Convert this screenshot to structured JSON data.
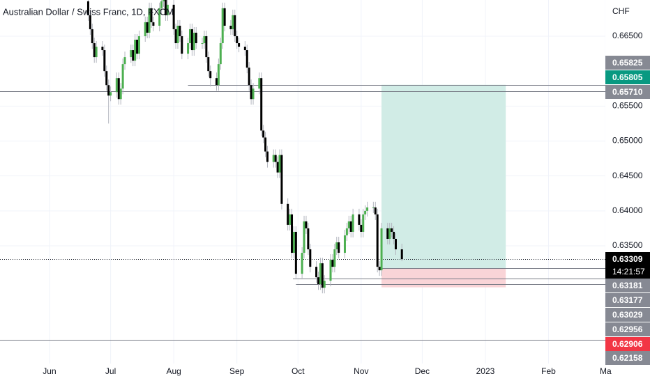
{
  "chart_data": {
    "type": "candlestick",
    "title": "Australian Dollar / Swiss Franc, 1D, FXCM",
    "y_unit_label": "CHF",
    "countdown": "14:21:57",
    "up_color": "#4caf50",
    "down_color": "#000000",
    "wick_color": "#b2b5be",
    "grid": true,
    "xlim": [
      -24.3,
      272.9
    ],
    "ylim": [
      0.61816,
      0.67018
    ],
    "xticks": [
      {
        "value": 0,
        "label": "Jun"
      },
      {
        "value": 30,
        "label": "Jul"
      },
      {
        "value": 61,
        "label": "Aug"
      },
      {
        "value": 92,
        "label": "Sep"
      },
      {
        "value": 122,
        "label": "Oct"
      },
      {
        "value": 153,
        "label": "Nov"
      },
      {
        "value": 183,
        "label": "Dec"
      },
      {
        "value": 214,
        "label": "2023"
      },
      {
        "value": 245,
        "label": "Feb"
      },
      {
        "value": 273,
        "label": "Ma"
      }
    ],
    "yticks": [
      {
        "value": 0.665,
        "label": "0.66500"
      },
      {
        "value": 0.655,
        "label": "0.65500"
      },
      {
        "value": 0.65,
        "label": "0.65000"
      },
      {
        "value": 0.645,
        "label": "0.64500"
      },
      {
        "value": 0.64,
        "label": "0.64000"
      },
      {
        "value": 0.635,
        "label": "0.63500"
      }
    ],
    "x": [
      19,
      20,
      21,
      22,
      23,
      26,
      27,
      28,
      29,
      30,
      33,
      34,
      35,
      36,
      37,
      40,
      41,
      42,
      43,
      44,
      47,
      48,
      49,
      50,
      51,
      54,
      55,
      56,
      57,
      58,
      61,
      62,
      63,
      64,
      65,
      68,
      69,
      70,
      71,
      72,
      75,
      76,
      77,
      78,
      79,
      82,
      83,
      84,
      85,
      86,
      89,
      90,
      91,
      92,
      93,
      96,
      97,
      98,
      99,
      100,
      103,
      104,
      105,
      106,
      107,
      110,
      111,
      112,
      113,
      114,
      117,
      118,
      119,
      120,
      121,
      124,
      125,
      126,
      127,
      128,
      131,
      132,
      133,
      134,
      135,
      138,
      139,
      140,
      141,
      142,
      145,
      146,
      147,
      148,
      149,
      152,
      153,
      154,
      155,
      156,
      159,
      160,
      161,
      162,
      163,
      166,
      167,
      168,
      169,
      170,
      173
    ],
    "open": [
      0.67,
      0.668,
      0.666,
      0.664,
      0.662,
      0.6635,
      0.663,
      0.66,
      0.658,
      0.6565,
      0.657,
      0.659,
      0.656,
      0.6575,
      0.661,
      0.662,
      0.663,
      0.6615,
      0.6645,
      0.6625,
      0.665,
      0.667,
      0.6655,
      0.669,
      0.667,
      0.6665,
      0.669,
      0.67,
      0.6705,
      0.668,
      0.6695,
      0.666,
      0.664,
      0.6665,
      0.665,
      0.6625,
      0.664,
      0.666,
      0.663,
      0.6655,
      0.664,
      0.664,
      0.665,
      0.662,
      0.66,
      0.659,
      0.658,
      0.661,
      0.664,
      0.669,
      0.6665,
      0.666,
      0.668,
      0.665,
      0.664,
      0.6635,
      0.663,
      0.6605,
      0.658,
      0.656,
      0.6575,
      0.659,
      0.6515,
      0.6505,
      0.6485,
      0.647,
      0.648,
      0.647,
      0.6455,
      0.648,
      0.641,
      0.638,
      0.6395,
      0.634,
      0.637,
      0.631,
      0.634,
      0.6385,
      0.6375,
      0.6345,
      0.632,
      0.6305,
      0.6295,
      0.6325,
      0.629,
      0.63,
      0.633,
      0.632,
      0.6345,
      0.6355,
      0.634,
      0.6365,
      0.6375,
      0.6385,
      0.637,
      0.6395,
      0.638,
      0.637,
      0.6395,
      0.64,
      0.6405,
      0.6405,
      0.6395,
      0.632,
      0.6315,
      0.6375,
      0.636,
      0.6375,
      0.637,
      0.636,
      0.6345
    ],
    "high": [
      0.6708,
      0.6688,
      0.6668,
      0.6648,
      0.6643,
      0.6643,
      0.6638,
      0.6608,
      0.6588,
      0.6578,
      0.6598,
      0.6598,
      0.6583,
      0.6618,
      0.6628,
      0.6638,
      0.6638,
      0.6653,
      0.6653,
      0.6658,
      0.6678,
      0.6678,
      0.6698,
      0.6698,
      0.6678,
      0.6698,
      0.6708,
      0.6713,
      0.6713,
      0.6703,
      0.6703,
      0.6668,
      0.6673,
      0.6673,
      0.6658,
      0.6648,
      0.6668,
      0.6668,
      0.6663,
      0.6663,
      0.6648,
      0.6658,
      0.6658,
      0.6628,
      0.6608,
      0.6598,
      0.6618,
      0.6648,
      0.6698,
      0.6698,
      0.6673,
      0.6688,
      0.6688,
      0.6658,
      0.6648,
      0.6643,
      0.6638,
      0.6613,
      0.6588,
      0.6583,
      0.6598,
      0.6598,
      0.6523,
      0.6513,
      0.6493,
      0.6488,
      0.6488,
      0.6478,
      0.6488,
      0.6488,
      0.6418,
      0.6403,
      0.6403,
      0.6378,
      0.6378,
      0.6348,
      0.6393,
      0.6393,
      0.6383,
      0.6353,
      0.6328,
      0.6313,
      0.6333,
      0.6333,
      0.6308,
      0.6338,
      0.6338,
      0.6353,
      0.6363,
      0.6363,
      0.6373,
      0.6383,
      0.6393,
      0.6393,
      0.6403,
      0.6403,
      0.6388,
      0.6403,
      0.6408,
      0.6413,
      0.6413,
      0.6413,
      0.6403,
      0.6328,
      0.6383,
      0.6383,
      0.6383,
      0.6383,
      0.6378,
      0.6368,
      0.6353
    ],
    "low": [
      0.6672,
      0.6652,
      0.6632,
      0.6612,
      0.6612,
      0.6622,
      0.6592,
      0.6572,
      0.6525,
      0.6557,
      0.6562,
      0.6552,
      0.6552,
      0.6567,
      0.6602,
      0.6612,
      0.6607,
      0.6607,
      0.6617,
      0.6617,
      0.6642,
      0.6647,
      0.6647,
      0.6662,
      0.6657,
      0.6657,
      0.6682,
      0.6692,
      0.6672,
      0.6672,
      0.6652,
      0.6632,
      0.6632,
      0.6642,
      0.6617,
      0.6617,
      0.6632,
      0.6622,
      0.6622,
      0.6632,
      0.6632,
      0.6632,
      0.6612,
      0.6592,
      0.6578,
      0.6572,
      0.6572,
      0.6602,
      0.6632,
      0.6657,
      0.6652,
      0.6652,
      0.6642,
      0.6632,
      0.6627,
      0.6622,
      0.6597,
      0.6572,
      0.6552,
      0.6552,
      0.6567,
      0.6507,
      0.6497,
      0.6477,
      0.6462,
      0.6462,
      0.6462,
      0.6447,
      0.6447,
      0.6402,
      0.6372,
      0.6372,
      0.6332,
      0.6332,
      0.6302,
      0.6302,
      0.6332,
      0.6367,
      0.6337,
      0.6312,
      0.6297,
      0.6287,
      0.6287,
      0.6282,
      0.6282,
      0.6292,
      0.6312,
      0.6312,
      0.6337,
      0.6332,
      0.6332,
      0.6357,
      0.6367,
      0.6362,
      0.6362,
      0.6372,
      0.6362,
      0.6362,
      0.6387,
      0.6392,
      0.6397,
      0.6387,
      0.6312,
      0.6307,
      0.6307,
      0.6352,
      0.6352,
      0.6362,
      0.6352,
      0.6337,
      0.6328
    ],
    "close": [
      0.668,
      0.666,
      0.664,
      0.662,
      0.6635,
      0.663,
      0.66,
      0.658,
      0.6565,
      0.657,
      0.659,
      0.656,
      0.6575,
      0.661,
      0.662,
      0.663,
      0.6615,
      0.6645,
      0.6625,
      0.665,
      0.667,
      0.6655,
      0.669,
      0.667,
      0.6665,
      0.669,
      0.67,
      0.6705,
      0.668,
      0.6695,
      0.666,
      0.664,
      0.6665,
      0.665,
      0.6625,
      0.664,
      0.666,
      0.663,
      0.6655,
      0.664,
      0.664,
      0.665,
      0.662,
      0.66,
      0.659,
      0.658,
      0.661,
      0.664,
      0.669,
      0.6665,
      0.666,
      0.668,
      0.665,
      0.664,
      0.6635,
      0.663,
      0.6605,
      0.658,
      0.656,
      0.6575,
      0.659,
      0.6515,
      0.6505,
      0.6485,
      0.647,
      0.648,
      0.647,
      0.6455,
      0.648,
      0.641,
      0.638,
      0.6395,
      0.634,
      0.637,
      0.631,
      0.634,
      0.6385,
      0.6375,
      0.6345,
      0.632,
      0.6305,
      0.6295,
      0.6325,
      0.629,
      0.63,
      0.633,
      0.632,
      0.6345,
      0.6355,
      0.634,
      0.6365,
      0.6375,
      0.6385,
      0.637,
      0.6395,
      0.638,
      0.637,
      0.6395,
      0.64,
      0.6405,
      0.6405,
      0.6395,
      0.632,
      0.6315,
      0.6375,
      0.636,
      0.6375,
      0.637,
      0.636,
      0.6345,
      0.63309
    ],
    "position": {
      "start": 163,
      "end": 224,
      "entry": 0.63181,
      "target": 0.65805,
      "stop": 0.62906,
      "profit_color": "#d1ece6",
      "loss_color": "#f9d4d7"
    },
    "price_levels": [
      {
        "value": 0.65825,
        "label": "0.65825",
        "color": "#868993"
      },
      {
        "value": 0.65805,
        "label": "0.65805",
        "color": "#089981",
        "line_from": 68
      },
      {
        "value": 0.6571,
        "label": "0.65710",
        "color": "#868993",
        "line_from": -24.3
      },
      {
        "value": 0.63309,
        "label": "0.63309",
        "color": "#000000",
        "line_from": -24.3,
        "dotted": true
      },
      {
        "value": 0.63181,
        "label": "0.63181",
        "color": "#868993",
        "line_from": 163
      },
      {
        "value": 0.63177,
        "label": "0.63177",
        "color": "#868993"
      },
      {
        "value": 0.63029,
        "label": "0.63029",
        "color": "#868993",
        "line_from": 119.5
      },
      {
        "value": 0.62956,
        "label": "0.62956",
        "color": "#868993",
        "line_from": 121
      },
      {
        "value": 0.62906,
        "label": "0.62906",
        "color": "#f23645"
      },
      {
        "value": 0.62158,
        "label": "0.62158",
        "color": "#868993",
        "line_from": -24.3
      }
    ]
  }
}
